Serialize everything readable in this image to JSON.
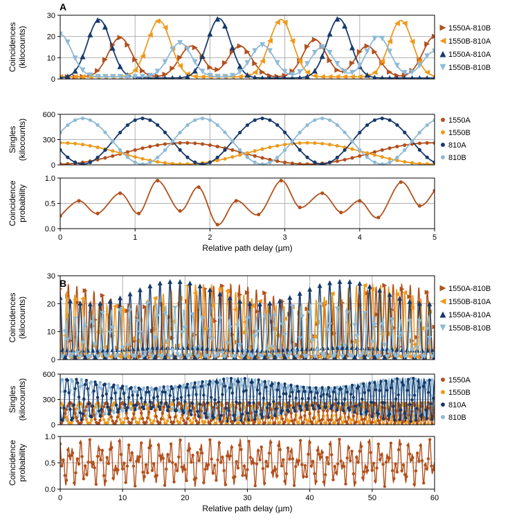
{
  "colors": {
    "c1550A_810B": "#b2501c",
    "c1550B_810A": "#ee9a1c",
    "c1550A_810A": "#173a6b",
    "c1550B_810B": "#8ebad6",
    "s1550A": "#b2501c",
    "s1550B": "#ee9a1c",
    "s810A": "#173a6b",
    "s810B": "#8ebad6",
    "prob": "#b2501c"
  },
  "chart_data": [
    {
      "panel_label": "A",
      "xlabel": "Relative path delay (µm)",
      "xlim": [
        0,
        5
      ],
      "xticks": [
        "0",
        "1",
        "2",
        "3",
        "4",
        "5"
      ],
      "subplots": [
        {
          "type": "line",
          "ylabel": [
            "Coincidences",
            "(kilocounts)"
          ],
          "ylim": [
            0,
            30
          ],
          "yticks": [
            "0",
            "10",
            "20",
            "30"
          ],
          "legend": [
            "1550A-810B",
            "1550B-810A",
            "1550A-810A",
            "1550B-810B"
          ],
          "series": [
            {
              "name": "1550A-810B",
              "marker": "triangle-right",
              "peak_x": [
                0.8,
                1.75,
                2.4,
                3.4,
                4.1,
                5.0
              ],
              "peak_y": [
                19.5,
                15.5,
                15.5,
                18.5,
                15.5,
                20
              ],
              "baseline": 1
            },
            {
              "name": "1550B-810A",
              "marker": "triangle-left",
              "peak_x": [
                1.32,
                2.95,
                4.55
              ],
              "peak_y": [
                27.5,
                28,
                27.5
              ],
              "baseline": 1
            },
            {
              "name": "1550A-810A",
              "marker": "triangle-up",
              "peak_x": [
                0.52,
                2.12,
                3.72
              ],
              "peak_y": [
                28,
                28.5,
                28.5
              ],
              "baseline": 0.5
            },
            {
              "name": "1550B-810B",
              "marker": "triangle-down",
              "peak_x": [
                0.0,
                1.6,
                2.7,
                3.5,
                4.25,
                5.0
              ],
              "peak_y": [
                21,
                17,
                16,
                15,
                20,
                13
              ],
              "baseline": 1
            }
          ]
        },
        {
          "type": "line",
          "ylabel": [
            "Singles",
            "(kilocounts)"
          ],
          "ylim": [
            0,
            620
          ],
          "yticks": [
            "0",
            "300",
            "600"
          ],
          "legend": [
            "1550A",
            "1550B",
            "810A",
            "810B"
          ],
          "series": [
            {
              "name": "1550A",
              "mean": 140,
              "amplitude": 130,
              "period": 3.3,
              "phase": 3.14
            },
            {
              "name": "1550B",
              "mean": 140,
              "amplitude": 130,
              "period": 3.3,
              "phase": 0.0
            },
            {
              "name": "810A",
              "mean": 290,
              "amplitude": 280,
              "period": 1.6,
              "phase": 1.96
            },
            {
              "name": "810B",
              "mean": 290,
              "amplitude": 280,
              "period": 1.6,
              "phase": 5.1
            }
          ]
        },
        {
          "type": "line",
          "ylabel": [
            "Coincidence",
            "probability"
          ],
          "ylim": [
            0,
            1.0
          ],
          "yticks": [
            "0.0",
            "0.5",
            "1.0"
          ],
          "series": [
            {
              "name": "probability",
              "x": [
                0,
                0.25,
                0.5,
                0.8,
                1.05,
                1.3,
                1.6,
                1.85,
                2.1,
                2.35,
                2.65,
                2.95,
                3.2,
                3.5,
                3.75,
                4.0,
                4.25,
                4.55,
                4.8,
                5.0
              ],
              "y": [
                0.25,
                0.55,
                0.3,
                0.7,
                0.3,
                0.95,
                0.35,
                0.82,
                0.08,
                0.55,
                0.28,
                0.95,
                0.42,
                0.7,
                0.32,
                0.55,
                0.22,
                0.92,
                0.45,
                0.75
              ]
            }
          ]
        }
      ]
    },
    {
      "panel_label": "B",
      "xlabel": "Relative path delay (µm)",
      "xlim": [
        0,
        60
      ],
      "xticks": [
        "0",
        "10",
        "20",
        "30",
        "40",
        "50",
        "60"
      ],
      "subplots": [
        {
          "type": "line",
          "ylabel": [
            "Coincidences",
            "(kilocounts)"
          ],
          "ylim": [
            0,
            30
          ],
          "yticks": [
            "0",
            "10",
            "20",
            "30"
          ],
          "legend": [
            "1550A-810B",
            "1550B-810A",
            "1550A-810A",
            "1550B-810B"
          ],
          "series": [
            {
              "name": "1550A-810B",
              "marker": "triangle-right",
              "max": 27
            },
            {
              "name": "1550B-810A",
              "marker": "triangle-left",
              "max": 27
            },
            {
              "name": "1550A-810A",
              "marker": "triangle-up",
              "max": 28
            },
            {
              "name": "1550B-810B",
              "marker": "triangle-down",
              "max": 20
            }
          ]
        },
        {
          "type": "line",
          "ylabel": [
            "Singles",
            "(kilocounts)"
          ],
          "ylim": [
            0,
            620
          ],
          "yticks": [
            "0",
            "300",
            "600"
          ],
          "legend": [
            "1550A",
            "1550B",
            "810A",
            "810B"
          ],
          "series": [
            {
              "name": "1550A",
              "max": 270
            },
            {
              "name": "1550B",
              "max": 270
            },
            {
              "name": "810A",
              "max": 570
            },
            {
              "name": "810B",
              "max": 570
            }
          ]
        },
        {
          "type": "line",
          "ylabel": [
            "Coincidence",
            "probability"
          ],
          "ylim": [
            0,
            1.0
          ],
          "yticks": [
            "0.0",
            "0.5",
            "1.0"
          ],
          "series": [
            {
              "name": "probability",
              "min": 0.05,
              "max": 0.95
            }
          ]
        }
      ]
    }
  ]
}
